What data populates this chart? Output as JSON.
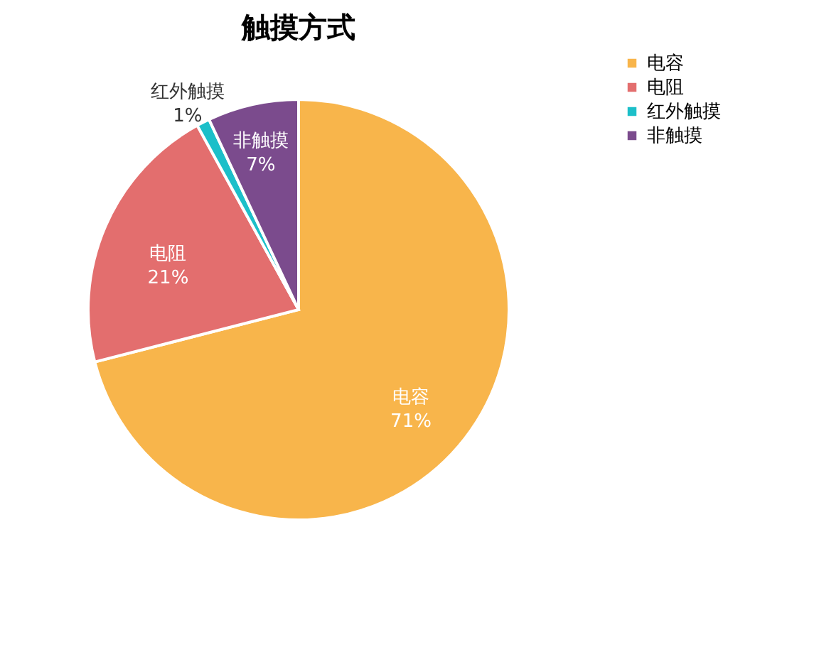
{
  "chart_data": {
    "type": "pie",
    "title": "触摸方式",
    "categories": [
      "电容",
      "电阻",
      "红外触摸",
      "非触摸"
    ],
    "values": [
      71,
      21,
      1,
      7
    ],
    "colors": [
      "#f8b54b",
      "#e36e6e",
      "#1cbfc9",
      "#7b4b8d"
    ],
    "value_labels": [
      "71%",
      "21%",
      "1%",
      "7%"
    ],
    "legend": "right"
  }
}
